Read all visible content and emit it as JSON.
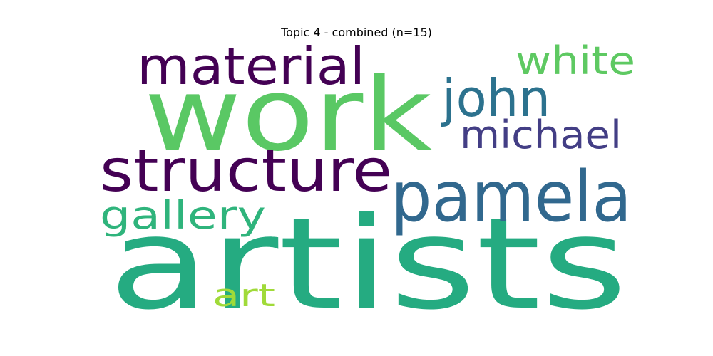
{
  "chart_data": {
    "type": "wordcloud",
    "title": "Topic 4 - combined (n=15)",
    "words": [
      {
        "text": "artists",
        "color": "#25ab81"
      },
      {
        "text": "work",
        "color": "#5ac864"
      },
      {
        "text": "pamela",
        "color": "#31688e"
      },
      {
        "text": "structure",
        "color": "#440154"
      },
      {
        "text": "material",
        "color": "#440154"
      },
      {
        "text": "john",
        "color": "#2c728e"
      },
      {
        "text": "michael",
        "color": "#433e85"
      },
      {
        "text": "white",
        "color": "#5ec962"
      },
      {
        "text": "gallery",
        "color": "#2fb47c"
      },
      {
        "text": "art",
        "color": "#a0da39"
      }
    ]
  }
}
